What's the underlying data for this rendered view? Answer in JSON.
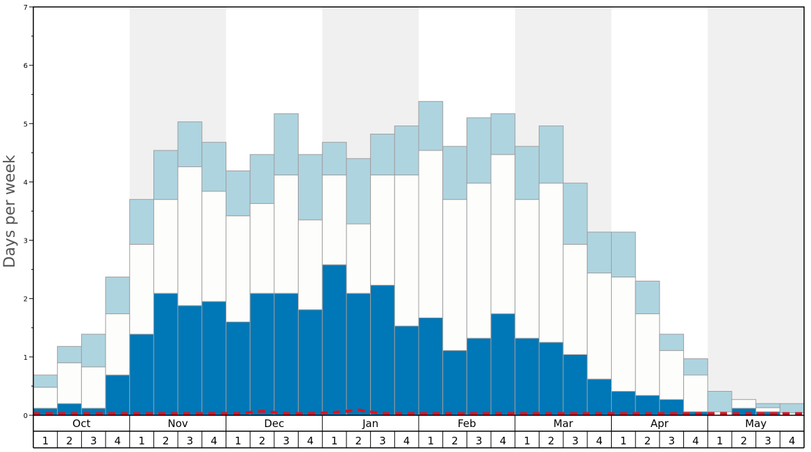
{
  "chart_data": {
    "type": "bar",
    "stacked": true,
    "ylabel": "Days per week",
    "ylim": [
      0,
      7
    ],
    "y_ticks": [
      0,
      1,
      2,
      3,
      4,
      5,
      6,
      7
    ],
    "y_tick_labels": [
      "0",
      "1",
      "2",
      "3",
      "4",
      "5",
      "6",
      "7"
    ],
    "months": [
      "Oct",
      "Nov",
      "Dec",
      "Jan",
      "Feb",
      "Mar",
      "Apr",
      "May"
    ],
    "weeks": [
      "1",
      "2",
      "3",
      "4"
    ],
    "shaded_months": [
      "Nov",
      "Jan",
      "Mar",
      "May"
    ],
    "colors": {
      "dark": "#0077b6",
      "white": "#fdfdfb",
      "light": "#aed4e0",
      "line": "#e0101e",
      "shade": "#f0f0f0",
      "bar_stroke": "#9e9e9e"
    },
    "stack_tops": [
      {
        "name": "dark",
        "values": [
          0.12,
          0.2,
          0.12,
          0.69,
          1.39,
          2.09,
          1.88,
          1.95,
          1.6,
          2.09,
          2.09,
          1.81,
          2.58,
          2.09,
          2.23,
          1.53,
          1.67,
          1.11,
          1.32,
          1.74,
          1.32,
          1.25,
          1.04,
          0.62,
          0.41,
          0.34,
          0.27,
          0.06,
          0.0,
          0.12,
          0.06,
          0.0
        ]
      },
      {
        "name": "white",
        "values": [
          0.48,
          0.9,
          0.83,
          1.74,
          2.93,
          3.7,
          4.26,
          3.84,
          3.42,
          3.63,
          4.12,
          3.35,
          4.12,
          3.28,
          4.12,
          4.12,
          4.54,
          3.7,
          3.98,
          4.47,
          3.7,
          3.98,
          2.93,
          2.44,
          2.37,
          1.74,
          1.11,
          0.69,
          0.06,
          0.27,
          0.13,
          0.04
        ]
      },
      {
        "name": "light",
        "values": [
          0.69,
          1.18,
          1.39,
          2.37,
          3.7,
          4.54,
          5.03,
          4.68,
          4.19,
          4.47,
          5.17,
          4.47,
          4.68,
          4.4,
          4.82,
          4.96,
          5.38,
          4.61,
          5.1,
          5.17,
          4.61,
          4.96,
          3.98,
          3.14,
          3.14,
          2.3,
          1.39,
          0.97,
          0.41,
          0.27,
          0.2,
          0.2
        ]
      }
    ],
    "line_series": {
      "name": "dashed",
      "values": [
        0.03,
        0.03,
        0.03,
        0.03,
        0.03,
        0.03,
        0.03,
        0.03,
        0.03,
        0.07,
        0.03,
        0.03,
        0.05,
        0.09,
        0.03,
        0.03,
        0.03,
        0.03,
        0.03,
        0.03,
        0.03,
        0.03,
        0.03,
        0.03,
        0.03,
        0.03,
        0.03,
        0.03,
        0.03,
        0.03,
        0.03,
        0.03
      ]
    }
  }
}
